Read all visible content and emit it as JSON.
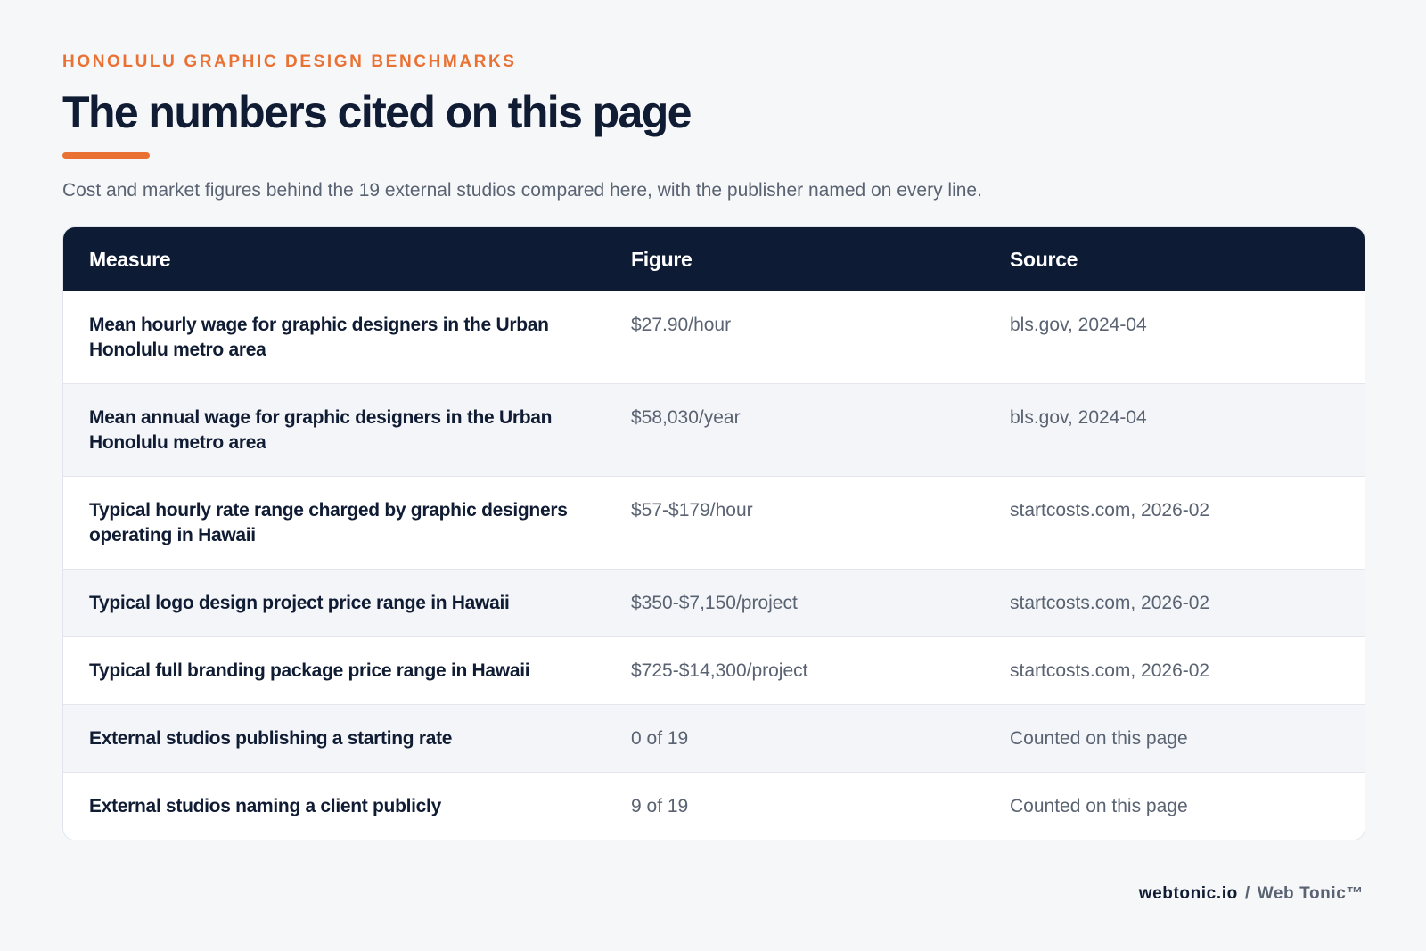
{
  "header": {
    "eyebrow": "HONOLULU GRAPHIC DESIGN BENCHMARKS",
    "title": "The numbers cited on this page",
    "subtitle": "Cost and market figures behind the 19 external studios compared here, with the publisher named on every line."
  },
  "table": {
    "columns": [
      "Measure",
      "Figure",
      "Source"
    ],
    "rows": [
      {
        "measure": "Mean hourly wage for graphic designers in the Urban Honolulu metro area",
        "figure": "$27.90/hour",
        "source": "bls.gov, 2024-04"
      },
      {
        "measure": "Mean annual wage for graphic designers in the Urban Honolulu metro area",
        "figure": "$58,030/year",
        "source": "bls.gov, 2024-04"
      },
      {
        "measure": "Typical hourly rate range charged by graphic designers operating in Hawaii",
        "figure": "$57-$179/hour",
        "source": "startcosts.com, 2026-02"
      },
      {
        "measure": "Typical logo design project price range in Hawaii",
        "figure": "$350-$7,150/project",
        "source": "startcosts.com, 2026-02"
      },
      {
        "measure": "Typical full branding package price range in Hawaii",
        "figure": "$725-$14,300/project",
        "source": "startcosts.com, 2026-02"
      },
      {
        "measure": "External studios publishing a starting rate",
        "figure": "0 of 19",
        "source": "Counted on this page"
      },
      {
        "measure": "External studios naming a client publicly",
        "figure": "9 of 19",
        "source": "Counted on this page"
      }
    ]
  },
  "footer": {
    "domain": "webtonic.io",
    "separator": "/",
    "brand": "Web Tonic™"
  },
  "colors": {
    "accent": "#ea7134",
    "header_bg": "#0e1b35",
    "text_dark": "#101c33",
    "text_muted": "#5a6372"
  }
}
